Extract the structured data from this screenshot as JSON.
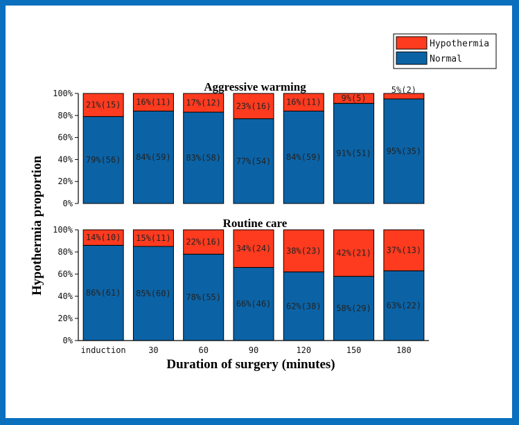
{
  "chart_data": {
    "type": "bar",
    "stacked": true,
    "xlabel": "Duration of surgery (minutes)",
    "ylabel": "Hypothermia proportion",
    "categories": [
      "induction",
      "30",
      "60",
      "90",
      "120",
      "150",
      "180"
    ],
    "y_ticks": [
      "0%",
      "20%",
      "40%",
      "60%",
      "80%",
      "100%"
    ],
    "ylim": [
      0,
      100
    ],
    "legend": {
      "position": "top-right",
      "entries": [
        {
          "name": "Hypothermia",
          "color": "#ff3b1f"
        },
        {
          "name": "Normal",
          "color": "#0b63a6"
        }
      ]
    },
    "panels": [
      {
        "title": "Aggressive warming",
        "series": [
          {
            "name": "Normal",
            "values": [
              79,
              84,
              83,
              77,
              84,
              91,
              95
            ],
            "labels": [
              "79%(56)",
              "84%(59)",
              "83%(58)",
              "77%(54)",
              "84%(59)",
              "91%(51)",
              "95%(35)"
            ]
          },
          {
            "name": "Hypothermia",
            "values": [
              21,
              16,
              17,
              23,
              16,
              9,
              5
            ],
            "labels": [
              "21%(15)",
              "16%(11)",
              "17%(12)",
              "23%(16)",
              "16%(11)",
              "9%(5)",
              "5%(2)"
            ]
          }
        ]
      },
      {
        "title": "Routine care",
        "series": [
          {
            "name": "Normal",
            "values": [
              86,
              85,
              78,
              66,
              62,
              58,
              63
            ],
            "labels": [
              "86%(61)",
              "85%(60)",
              "78%(55)",
              "66%(46)",
              "62%(38)",
              "58%(29)",
              "63%(22)"
            ]
          },
          {
            "name": "Hypothermia",
            "values": [
              14,
              15,
              22,
              34,
              38,
              42,
              37
            ],
            "labels": [
              "14%(10)",
              "15%(11)",
              "22%(16)",
              "34%(24)",
              "38%(23)",
              "42%(21)",
              "37%(13)"
            ]
          }
        ]
      }
    ]
  }
}
